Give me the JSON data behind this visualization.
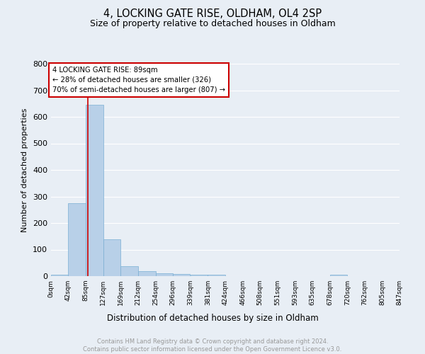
{
  "title": "4, LOCKING GATE RISE, OLDHAM, OL4 2SP",
  "subtitle": "Size of property relative to detached houses in Oldham",
  "xlabel": "Distribution of detached houses by size in Oldham",
  "ylabel": "Number of detached properties",
  "bar_color": "#b8d0e8",
  "bar_edge_color": "#7aafd4",
  "background_color": "#e8eef5",
  "grid_color": "#ffffff",
  "bin_edges": [
    0,
    42,
    85,
    127,
    169,
    212,
    254,
    296,
    339,
    381,
    424,
    466,
    508,
    551,
    593,
    635,
    678,
    720,
    762,
    805,
    847
  ],
  "bin_labels": [
    "0sqm",
    "42sqm",
    "85sqm",
    "127sqm",
    "169sqm",
    "212sqm",
    "254sqm",
    "296sqm",
    "339sqm",
    "381sqm",
    "424sqm",
    "466sqm",
    "508sqm",
    "551sqm",
    "593sqm",
    "635sqm",
    "678sqm",
    "720sqm",
    "762sqm",
    "805sqm",
    "847sqm"
  ],
  "bar_heights": [
    5,
    275,
    645,
    140,
    38,
    20,
    10,
    8,
    5,
    5,
    0,
    0,
    0,
    0,
    0,
    0,
    5,
    0,
    0,
    0
  ],
  "red_line_x": 89,
  "annotation_text": "4 LOCKING GATE RISE: 89sqm\n← 28% of detached houses are smaller (326)\n70% of semi-detached houses are larger (807) →",
  "annotation_box_color": "#ffffff",
  "annotation_box_edge_color": "#cc0000",
  "ylim": [
    0,
    800
  ],
  "yticks": [
    0,
    100,
    200,
    300,
    400,
    500,
    600,
    700,
    800
  ],
  "footer_text": "Contains HM Land Registry data © Crown copyright and database right 2024.\nContains public sector information licensed under the Open Government Licence v3.0.",
  "footer_color": "#999999"
}
